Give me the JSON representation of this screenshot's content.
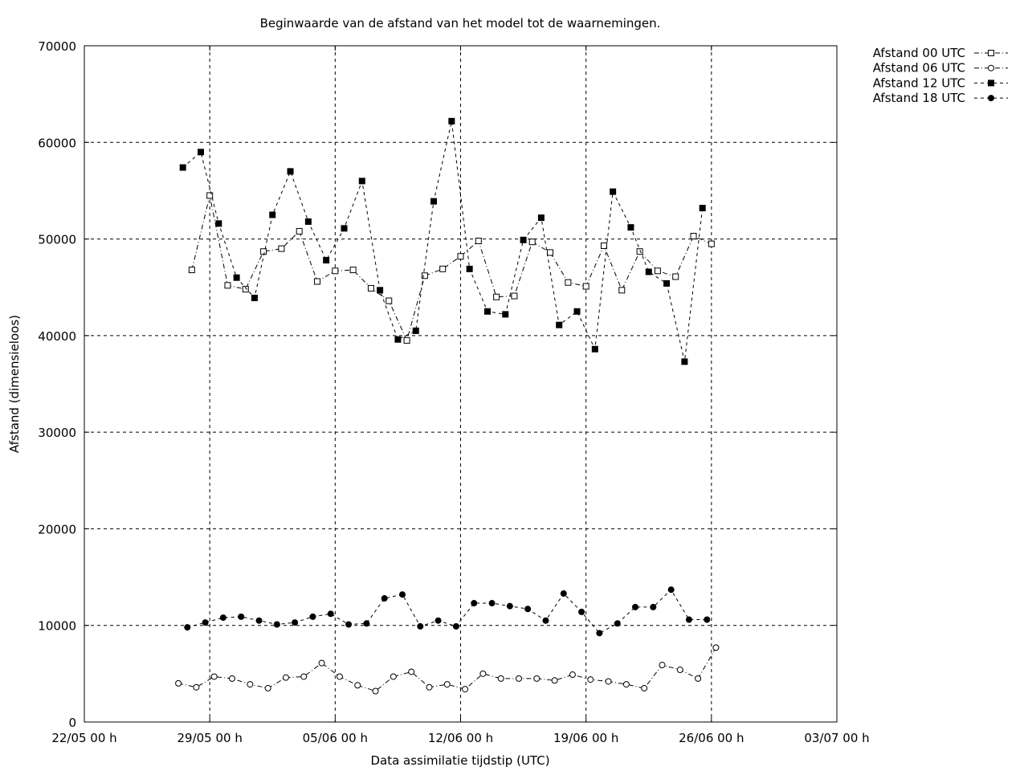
{
  "chart_data": {
    "type": "line",
    "title": "Beginwaarde van de afstand van het model tot de waarnemingen.",
    "xlabel": "Data assimilatie tijdstip (UTC)",
    "ylabel": "Afstand (dimensieloos)",
    "xlim": [
      "2022-05-22T00:00",
      "2022-07-03T00:00"
    ],
    "ylim": [
      0,
      70000
    ],
    "x_ticks": [
      {
        "label": "22/05 00 h",
        "date": "2022-05-22T00:00"
      },
      {
        "label": "29/05 00 h",
        "date": "2022-05-29T00:00"
      },
      {
        "label": "05/06 00 h",
        "date": "2022-06-05T00:00"
      },
      {
        "label": "12/06 00 h",
        "date": "2022-06-12T00:00"
      },
      {
        "label": "19/06 00 h",
        "date": "2022-06-19T00:00"
      },
      {
        "label": "26/06 00 h",
        "date": "2022-06-26T00:00"
      },
      {
        "label": "03/07 00 h",
        "date": "2022-07-03T00:00"
      }
    ],
    "y_ticks": [
      {
        "label": "0",
        "value": 0
      },
      {
        "label": "10000",
        "value": 10000
      },
      {
        "label": "20000",
        "value": 20000
      },
      {
        "label": "30000",
        "value": 30000
      },
      {
        "label": "40000",
        "value": 40000
      },
      {
        "label": "50000",
        "value": 50000
      },
      {
        "label": "60000",
        "value": 60000
      },
      {
        "label": "70000",
        "value": 70000
      }
    ],
    "grid": true,
    "legend_position": "top-right-outside",
    "series": [
      {
        "name": "Afstand 00 UTC",
        "marker": "open-square",
        "dash": "dash-dot",
        "points": [
          [
            "2022-05-28T00:00",
            46800
          ],
          [
            "2022-05-29T00:00",
            54500
          ],
          [
            "2022-05-30T00:00",
            45200
          ],
          [
            "2022-05-31T00:00",
            44800
          ],
          [
            "2022-06-01T00:00",
            48700
          ],
          [
            "2022-06-02T00:00",
            49000
          ],
          [
            "2022-06-03T00:00",
            50800
          ],
          [
            "2022-06-04T00:00",
            45600
          ],
          [
            "2022-06-05T00:00",
            46700
          ],
          [
            "2022-06-06T00:00",
            46800
          ],
          [
            "2022-06-07T00:00",
            44900
          ],
          [
            "2022-06-08T00:00",
            43600
          ],
          [
            "2022-06-09T00:00",
            39500
          ],
          [
            "2022-06-10T00:00",
            46200
          ],
          [
            "2022-06-11T00:00",
            46900
          ],
          [
            "2022-06-12T00:00",
            48200
          ],
          [
            "2022-06-13T00:00",
            49800
          ],
          [
            "2022-06-14T00:00",
            44000
          ],
          [
            "2022-06-15T00:00",
            44100
          ],
          [
            "2022-06-16T00:00",
            49700
          ],
          [
            "2022-06-17T00:00",
            48600
          ],
          [
            "2022-06-18T00:00",
            45500
          ],
          [
            "2022-06-19T00:00",
            45100
          ],
          [
            "2022-06-20T00:00",
            49300
          ],
          [
            "2022-06-21T00:00",
            44700
          ],
          [
            "2022-06-22T00:00",
            48700
          ],
          [
            "2022-06-23T00:00",
            46700
          ],
          [
            "2022-06-24T00:00",
            46100
          ],
          [
            "2022-06-25T00:00",
            50300
          ],
          [
            "2022-06-26T00:00",
            49500
          ]
        ]
      },
      {
        "name": "Afstand 06 UTC",
        "marker": "open-circle",
        "dash": "dash-dot",
        "points": [
          [
            "2022-05-27T06:00",
            4000
          ],
          [
            "2022-05-28T06:00",
            3600
          ],
          [
            "2022-05-29T06:00",
            4700
          ],
          [
            "2022-05-30T06:00",
            4500
          ],
          [
            "2022-05-31T06:00",
            3900
          ],
          [
            "2022-06-01T06:00",
            3500
          ],
          [
            "2022-06-02T06:00",
            4600
          ],
          [
            "2022-06-03T06:00",
            4700
          ],
          [
            "2022-06-04T06:00",
            6100
          ],
          [
            "2022-06-05T06:00",
            4700
          ],
          [
            "2022-06-06T06:00",
            3800
          ],
          [
            "2022-06-07T06:00",
            3200
          ],
          [
            "2022-06-08T06:00",
            4700
          ],
          [
            "2022-06-09T06:00",
            5200
          ],
          [
            "2022-06-10T06:00",
            3600
          ],
          [
            "2022-06-11T06:00",
            3900
          ],
          [
            "2022-06-12T06:00",
            3400
          ],
          [
            "2022-06-13T06:00",
            5000
          ],
          [
            "2022-06-14T06:00",
            4500
          ],
          [
            "2022-06-15T06:00",
            4500
          ],
          [
            "2022-06-16T06:00",
            4500
          ],
          [
            "2022-06-17T06:00",
            4300
          ],
          [
            "2022-06-18T06:00",
            4900
          ],
          [
            "2022-06-19T06:00",
            4400
          ],
          [
            "2022-06-20T06:00",
            4200
          ],
          [
            "2022-06-21T06:00",
            3900
          ],
          [
            "2022-06-22T06:00",
            3500
          ],
          [
            "2022-06-23T06:00",
            5900
          ],
          [
            "2022-06-24T06:00",
            5400
          ],
          [
            "2022-06-25T06:00",
            4500
          ],
          [
            "2022-06-26T06:00",
            7700
          ]
        ]
      },
      {
        "name": "Afstand 12 UTC",
        "marker": "filled-square",
        "dash": "dashed",
        "points": [
          [
            "2022-05-27T12:00",
            57400
          ],
          [
            "2022-05-28T12:00",
            59000
          ],
          [
            "2022-05-29T12:00",
            51600
          ],
          [
            "2022-05-30T12:00",
            46000
          ],
          [
            "2022-05-31T12:00",
            43900
          ],
          [
            "2022-06-01T12:00",
            52500
          ],
          [
            "2022-06-02T12:00",
            57000
          ],
          [
            "2022-06-03T12:00",
            51800
          ],
          [
            "2022-06-04T12:00",
            47800
          ],
          [
            "2022-06-05T12:00",
            51100
          ],
          [
            "2022-06-06T12:00",
            56000
          ],
          [
            "2022-06-07T12:00",
            44700
          ],
          [
            "2022-06-08T12:00",
            39600
          ],
          [
            "2022-06-09T12:00",
            40500
          ],
          [
            "2022-06-10T12:00",
            53900
          ],
          [
            "2022-06-11T12:00",
            62200
          ],
          [
            "2022-06-12T12:00",
            46900
          ],
          [
            "2022-06-13T12:00",
            42500
          ],
          [
            "2022-06-14T12:00",
            42200
          ],
          [
            "2022-06-15T12:00",
            49900
          ],
          [
            "2022-06-16T12:00",
            52200
          ],
          [
            "2022-06-17T12:00",
            41100
          ],
          [
            "2022-06-18T12:00",
            42500
          ],
          [
            "2022-06-19T12:00",
            38600
          ],
          [
            "2022-06-20T12:00",
            54900
          ],
          [
            "2022-06-21T12:00",
            51200
          ],
          [
            "2022-06-22T12:00",
            46600
          ],
          [
            "2022-06-23T12:00",
            45400
          ],
          [
            "2022-06-24T12:00",
            37300
          ],
          [
            "2022-06-25T12:00",
            53200
          ]
        ]
      },
      {
        "name": "Afstand 18 UTC",
        "marker": "filled-circle",
        "dash": "dashed",
        "points": [
          [
            "2022-05-27T18:00",
            9800
          ],
          [
            "2022-05-28T18:00",
            10300
          ],
          [
            "2022-05-29T18:00",
            10800
          ],
          [
            "2022-05-30T18:00",
            10900
          ],
          [
            "2022-05-31T18:00",
            10500
          ],
          [
            "2022-06-01T18:00",
            10100
          ],
          [
            "2022-06-02T18:00",
            10300
          ],
          [
            "2022-06-03T18:00",
            10900
          ],
          [
            "2022-06-04T18:00",
            11200
          ],
          [
            "2022-06-05T18:00",
            10100
          ],
          [
            "2022-06-06T18:00",
            10200
          ],
          [
            "2022-06-07T18:00",
            12800
          ],
          [
            "2022-06-08T18:00",
            13200
          ],
          [
            "2022-06-09T18:00",
            9900
          ],
          [
            "2022-06-10T18:00",
            10500
          ],
          [
            "2022-06-11T18:00",
            9900
          ],
          [
            "2022-06-12T18:00",
            12300
          ],
          [
            "2022-06-13T18:00",
            12300
          ],
          [
            "2022-06-14T18:00",
            12000
          ],
          [
            "2022-06-15T18:00",
            11700
          ],
          [
            "2022-06-16T18:00",
            10500
          ],
          [
            "2022-06-17T18:00",
            13300
          ],
          [
            "2022-06-18T18:00",
            11400
          ],
          [
            "2022-06-19T18:00",
            9200
          ],
          [
            "2022-06-20T18:00",
            10200
          ],
          [
            "2022-06-21T18:00",
            11900
          ],
          [
            "2022-06-22T18:00",
            11900
          ],
          [
            "2022-06-23T18:00",
            13700
          ],
          [
            "2022-06-24T18:00",
            10600
          ],
          [
            "2022-06-25T18:00",
            10600
          ]
        ]
      }
    ]
  }
}
